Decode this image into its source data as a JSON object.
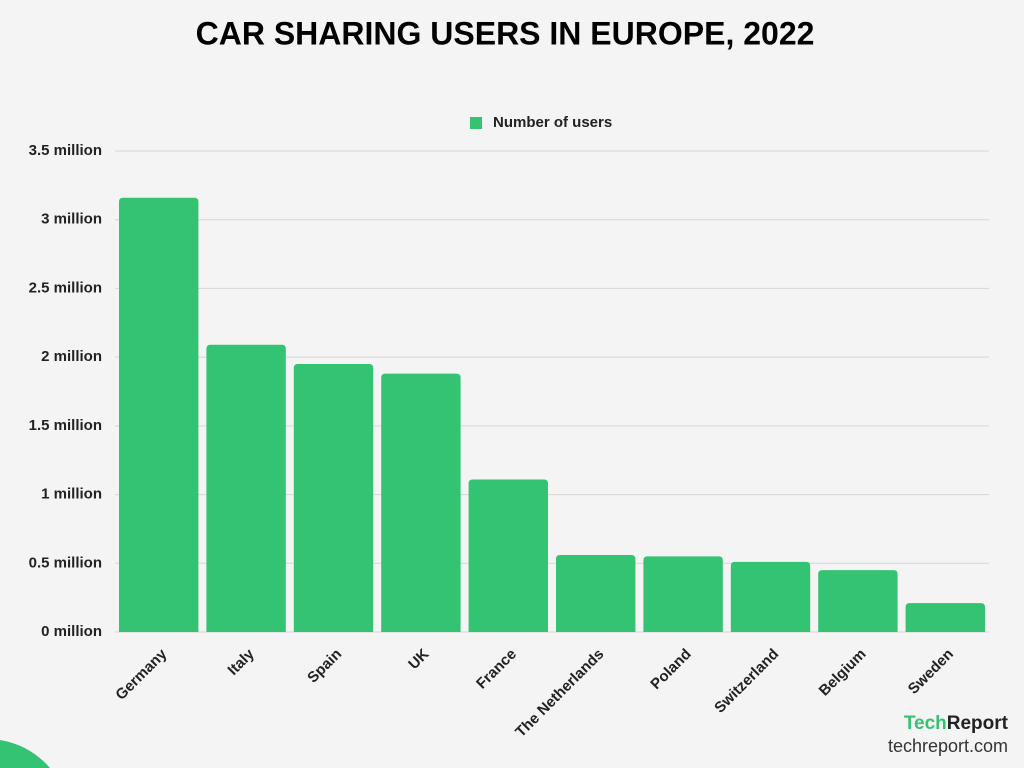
{
  "chart_data": {
    "type": "bar",
    "title": "CAR SHARING USERS IN EUROPE, 2022",
    "categories": [
      "Germany",
      "Italy",
      "Spain",
      "UK",
      "France",
      "The Netherlands",
      "Poland",
      "Switzerland",
      "Belgium",
      "Sweden"
    ],
    "series": [
      {
        "name": "Number of users",
        "color": "#34c273",
        "values": [
          3.16,
          2.09,
          1.95,
          1.88,
          1.11,
          0.56,
          0.55,
          0.51,
          0.45,
          0.21
        ]
      }
    ],
    "ylim": [
      0,
      3.5
    ],
    "yticks": [
      {
        "value": 0,
        "label": "0 million"
      },
      {
        "value": 0.5,
        "label": "0.5 million"
      },
      {
        "value": 1,
        "label": "1 million"
      },
      {
        "value": 1.5,
        "label": "1.5 million"
      },
      {
        "value": 2,
        "label": "2 million"
      },
      {
        "value": 2.5,
        "label": "2.5 million"
      },
      {
        "value": 3,
        "label": "3 million"
      },
      {
        "value": 3.5,
        "label": "3.5 million"
      }
    ],
    "grid": true,
    "legend": "top"
  },
  "branding": {
    "logo_tech": "Tech",
    "logo_report": "Report",
    "url": "techreport.com"
  }
}
